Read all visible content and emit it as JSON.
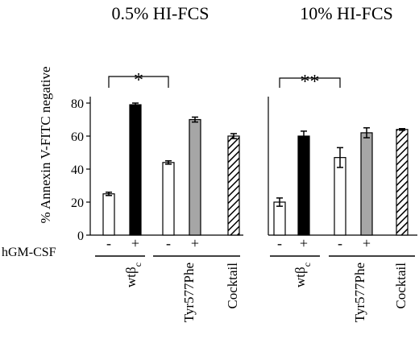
{
  "chart_data": {
    "type": "bar",
    "ylabel": "% Annexin V-FITC negative",
    "ylim": [
      0,
      80
    ],
    "yticks": [
      0,
      20,
      40,
      60,
      80
    ],
    "treatment_row_label": "hGM-CSF",
    "groups": [
      "wtβc",
      "Tyr577Phe",
      "Cocktail"
    ],
    "groups_display": [
      {
        "main": "wtβ",
        "sub": "c"
      },
      {
        "main": "Tyr577Phe",
        "sub": ""
      },
      {
        "main": "Cocktail",
        "sub": ""
      }
    ],
    "panels": [
      {
        "title": "0.5% HI-FCS",
        "significance": "*",
        "bars": [
          {
            "group": "wtβc",
            "treatment": "-",
            "value": 25,
            "error": 1,
            "style": "white"
          },
          {
            "group": "wtβc",
            "treatment": "+",
            "value": 79,
            "error": 1,
            "style": "black"
          },
          {
            "group": "Tyr577Phe",
            "treatment": "-",
            "value": 44,
            "error": 1,
            "style": "white"
          },
          {
            "group": "Tyr577Phe",
            "treatment": "+",
            "value": 70,
            "error": 1.5,
            "style": "gray"
          },
          {
            "group": "Cocktail",
            "treatment": "",
            "value": 60,
            "error": 1.5,
            "style": "hatched"
          }
        ]
      },
      {
        "title": "10% HI-FCS",
        "significance": "**",
        "bars": [
          {
            "group": "wtβc",
            "treatment": "-",
            "value": 20,
            "error": 2.5,
            "style": "white"
          },
          {
            "group": "wtβc",
            "treatment": "+",
            "value": 60,
            "error": 3,
            "style": "black"
          },
          {
            "group": "Tyr577Phe",
            "treatment": "-",
            "value": 47,
            "error": 6,
            "style": "white"
          },
          {
            "group": "Tyr577Phe",
            "treatment": "+",
            "value": 62,
            "error": 3,
            "style": "gray"
          },
          {
            "group": "Cocktail",
            "treatment": "",
            "value": 64,
            "error": 0.5,
            "style": "hatched"
          }
        ]
      }
    ]
  }
}
